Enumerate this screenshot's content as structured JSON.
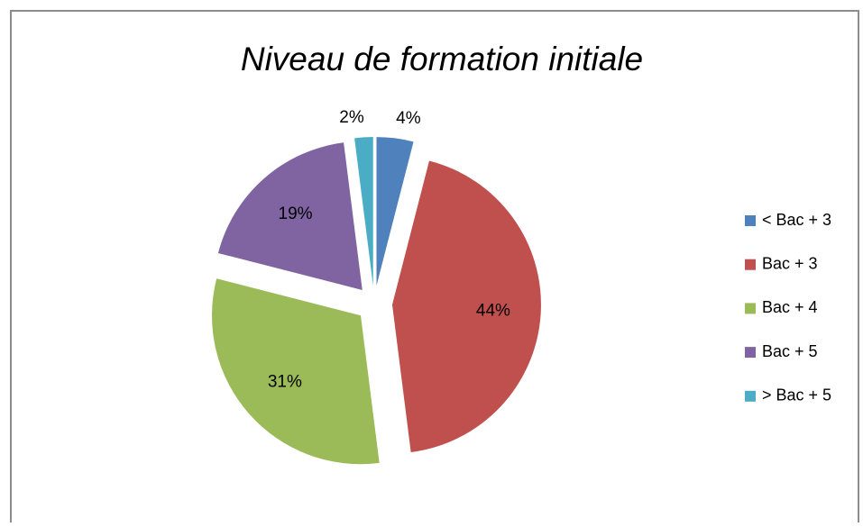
{
  "chart_data": {
    "type": "pie",
    "title": "Niveau  de formation initiale",
    "categories": [
      "< Bac + 3",
      "Bac + 3",
      "Bac + 4",
      "Bac + 5",
      "> Bac + 5"
    ],
    "values": [
      4,
      44,
      31,
      19,
      2
    ],
    "value_labels": [
      "4%",
      "44%",
      "31%",
      "19%",
      "2%"
    ],
    "colors": [
      "#4f81bd",
      "#c0504d",
      "#9bbb59",
      "#8064a2",
      "#4bacc6"
    ],
    "legend": "right"
  }
}
